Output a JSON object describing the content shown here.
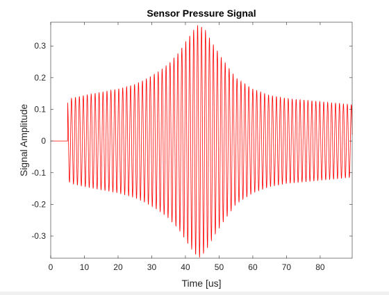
{
  "chart_data": {
    "type": "line",
    "title": "Sensor Pressure Signal",
    "xlabel": "Time [us]",
    "ylabel": "Signal Amplitude",
    "xlim": [
      0,
      89.5
    ],
    "ylim": [
      -0.37,
      0.375
    ],
    "x_ticks": [
      0,
      10,
      20,
      30,
      40,
      50,
      60,
      70,
      80
    ],
    "x_tick_labels": [
      "0",
      "10",
      "20",
      "30",
      "40",
      "50",
      "60",
      "70",
      "80"
    ],
    "y_ticks": [
      -0.3,
      -0.2,
      -0.1,
      0,
      0.1,
      0.2,
      0.3
    ],
    "y_tick_labels": [
      "-0.3",
      "-0.2",
      "-0.1",
      "0",
      "0.1",
      "0.2",
      "0.3"
    ],
    "grid": false,
    "line_color": "#ff0000",
    "series": [
      {
        "signal_onset_us": 5.0,
        "oscillation_period_us": 1.17,
        "envelope": {
          "x": [
            0,
            4.9,
            5.0,
            6,
            10,
            15,
            20,
            25,
            28,
            32,
            35,
            38,
            41,
            43,
            44,
            46,
            48,
            51,
            55,
            60,
            65,
            70,
            75,
            80,
            85,
            89.5
          ],
          "y": [
            0,
            0,
            0.125,
            0.135,
            0.145,
            0.155,
            0.165,
            0.18,
            0.195,
            0.22,
            0.245,
            0.28,
            0.33,
            0.36,
            0.37,
            0.35,
            0.31,
            0.26,
            0.2,
            0.165,
            0.145,
            0.135,
            0.13,
            0.125,
            0.12,
            0.115
          ]
        }
      }
    ]
  }
}
